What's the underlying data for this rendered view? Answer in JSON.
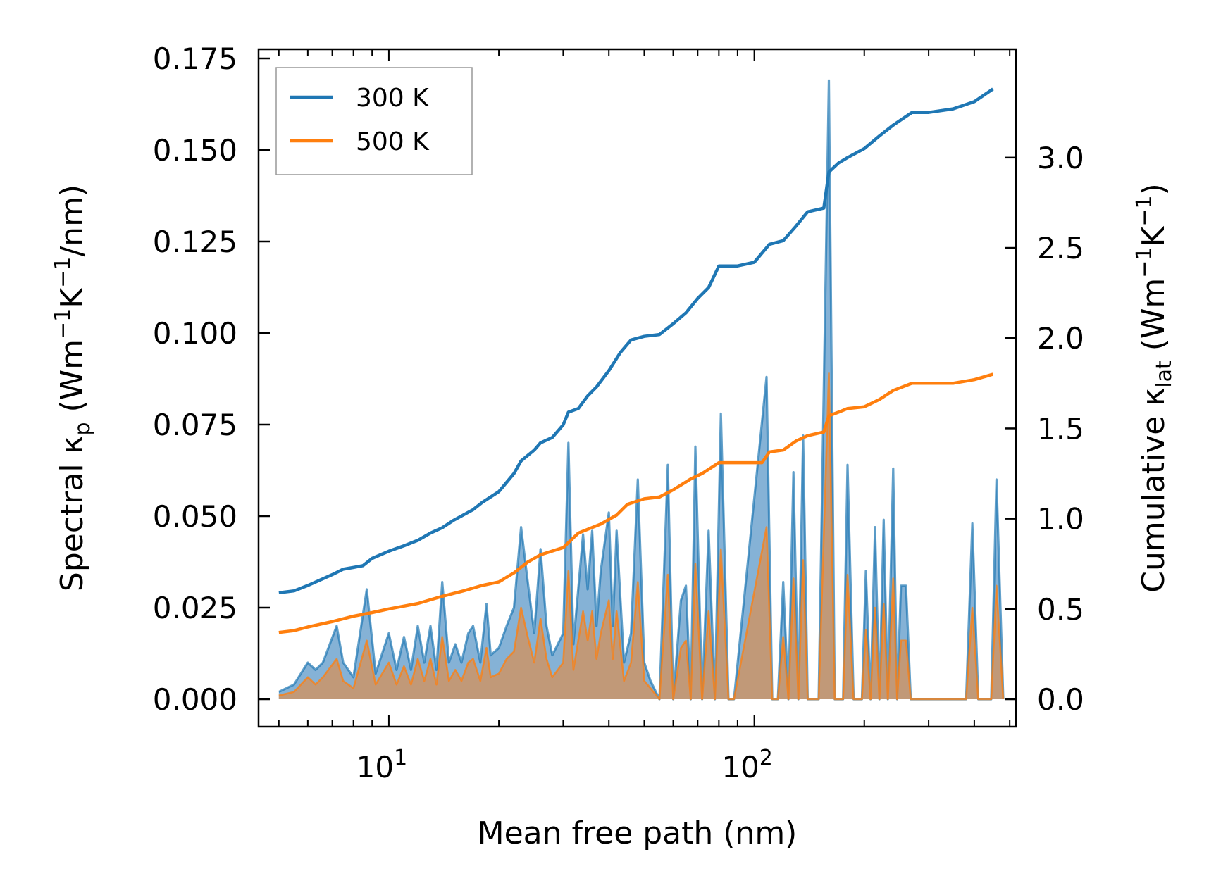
{
  "chart_data": {
    "type": "line",
    "xscale": "log",
    "xlabel": "Mean free path (nm)",
    "xlim": [
      4.4,
      520
    ],
    "x_ticks": [
      {
        "value": 10,
        "label": "10",
        "exp": "1"
      },
      {
        "value": 100,
        "label": "10",
        "exp": "2"
      }
    ],
    "ylabel_left": {
      "pre": "Spectral κ",
      "sub": "p",
      "mid": " (Wm",
      "sup1": "−1",
      "mid2": "K",
      "sup2": "−1",
      "post": "/nm)"
    },
    "ylabel_right": {
      "pre": "Cumulative κ",
      "sub": "lat",
      "mid": " (Wm",
      "sup1": "−1",
      "mid2": "K",
      "sup2": "−1",
      "post": ")"
    },
    "ylim_left": [
      -0.0075,
      0.1775
    ],
    "ylim_right": [
      -0.152,
      3.6
    ],
    "left_ticks": [
      "0.000",
      "0.025",
      "0.050",
      "0.075",
      "0.100",
      "0.125",
      "0.150",
      "0.175"
    ],
    "left_tick_values": [
      0,
      0.025,
      0.05,
      0.075,
      0.1,
      0.125,
      0.15,
      0.175
    ],
    "right_ticks": [
      "0.0",
      "0.5",
      "1.0",
      "1.5",
      "2.0",
      "2.5",
      "3.0"
    ],
    "right_tick_values": [
      0,
      0.5,
      1.0,
      1.5,
      2.0,
      2.5,
      3.0
    ],
    "legend": {
      "position": "top-left",
      "entries": [
        "300 K",
        "500 K"
      ]
    },
    "colors": {
      "t300": "#1f77b4",
      "t500": "#ff7f0e",
      "t500_fill": "#c8966e",
      "t300_fill": "#5c98c8"
    },
    "series": [
      {
        "name": "300 K",
        "cumulative": [
          [
            5.0,
            0.59
          ],
          [
            5.5,
            0.6
          ],
          [
            6.0,
            0.63
          ],
          [
            7.0,
            0.69
          ],
          [
            7.5,
            0.72
          ],
          [
            8.0,
            0.73
          ],
          [
            8.5,
            0.74
          ],
          [
            9.0,
            0.78
          ],
          [
            10.0,
            0.82
          ],
          [
            11.0,
            0.85
          ],
          [
            12.0,
            0.88
          ],
          [
            13.0,
            0.92
          ],
          [
            14.0,
            0.95
          ],
          [
            15.0,
            0.99
          ],
          [
            17.0,
            1.05
          ],
          [
            18.0,
            1.09
          ],
          [
            20.0,
            1.15
          ],
          [
            22.0,
            1.25
          ],
          [
            23.0,
            1.32
          ],
          [
            25.0,
            1.38
          ],
          [
            26.0,
            1.42
          ],
          [
            28.0,
            1.45
          ],
          [
            30.0,
            1.52
          ],
          [
            31.0,
            1.59
          ],
          [
            33.0,
            1.61
          ],
          [
            35.0,
            1.68
          ],
          [
            37.0,
            1.73
          ],
          [
            40.0,
            1.82
          ],
          [
            43.0,
            1.92
          ],
          [
            46.0,
            1.99
          ],
          [
            50.0,
            2.01
          ],
          [
            55.0,
            2.02
          ],
          [
            60.0,
            2.08
          ],
          [
            65.0,
            2.14
          ],
          [
            70.0,
            2.22
          ],
          [
            75.0,
            2.28
          ],
          [
            80.0,
            2.4
          ],
          [
            90.0,
            2.4
          ],
          [
            100.0,
            2.42
          ],
          [
            110.0,
            2.52
          ],
          [
            120.0,
            2.54
          ],
          [
            130.0,
            2.62
          ],
          [
            140.0,
            2.7
          ],
          [
            155.0,
            2.72
          ],
          [
            160.0,
            2.92
          ],
          [
            170.0,
            2.97
          ],
          [
            180.0,
            3.0
          ],
          [
            200.0,
            3.05
          ],
          [
            220.0,
            3.12
          ],
          [
            240.0,
            3.18
          ],
          [
            270.0,
            3.25
          ],
          [
            300.0,
            3.25
          ],
          [
            350.0,
            3.27
          ],
          [
            400.0,
            3.31
          ],
          [
            450.0,
            3.38
          ]
        ],
        "spectral": [
          [
            5.0,
            0.002
          ],
          [
            5.5,
            0.004
          ],
          [
            6.0,
            0.01
          ],
          [
            6.3,
            0.008
          ],
          [
            6.6,
            0.01
          ],
          [
            7.2,
            0.02
          ],
          [
            7.5,
            0.01
          ],
          [
            8.0,
            0.006
          ],
          [
            8.7,
            0.03
          ],
          [
            9.2,
            0.007
          ],
          [
            10.0,
            0.018
          ],
          [
            10.5,
            0.008
          ],
          [
            11.0,
            0.017
          ],
          [
            11.5,
            0.008
          ],
          [
            12.0,
            0.02
          ],
          [
            12.5,
            0.01
          ],
          [
            13.0,
            0.02
          ],
          [
            13.5,
            0.008
          ],
          [
            14.0,
            0.032
          ],
          [
            14.6,
            0.01
          ],
          [
            15.2,
            0.015
          ],
          [
            15.8,
            0.01
          ],
          [
            16.5,
            0.018
          ],
          [
            17.0,
            0.02
          ],
          [
            17.8,
            0.01
          ],
          [
            18.5,
            0.026
          ],
          [
            19.0,
            0.012
          ],
          [
            20.0,
            0.014
          ],
          [
            21.0,
            0.02
          ],
          [
            22.0,
            0.025
          ],
          [
            23.0,
            0.047
          ],
          [
            24.0,
            0.032
          ],
          [
            25.0,
            0.018
          ],
          [
            26.0,
            0.041
          ],
          [
            27.0,
            0.02
          ],
          [
            28.0,
            0.012
          ],
          [
            29.0,
            0.015
          ],
          [
            30.0,
            0.018
          ],
          [
            31.0,
            0.07
          ],
          [
            32.0,
            0.015
          ],
          [
            34.0,
            0.045
          ],
          [
            35.0,
            0.03
          ],
          [
            36.0,
            0.046
          ],
          [
            37.0,
            0.02
          ],
          [
            38.0,
            0.035
          ],
          [
            40.0,
            0.051
          ],
          [
            41.0,
            0.02
          ],
          [
            42.0,
            0.046
          ],
          [
            44.0,
            0.01
          ],
          [
            46.0,
            0.018
          ],
          [
            48.0,
            0.06
          ],
          [
            50.0,
            0.01
          ],
          [
            52.0,
            0.005
          ],
          [
            55.0,
            0.0
          ],
          [
            58.0,
            0.064
          ],
          [
            60.0,
            0.0
          ],
          [
            63.0,
            0.027
          ],
          [
            65.0,
            0.031
          ],
          [
            67.0,
            0.0
          ],
          [
            69.0,
            0.069
          ],
          [
            72.0,
            0.0
          ],
          [
            75.0,
            0.046
          ],
          [
            78.0,
            0.0
          ],
          [
            81.0,
            0.078
          ],
          [
            85.0,
            0.0
          ],
          [
            88.0,
            0.0
          ],
          [
            108.0,
            0.088
          ],
          [
            112.0,
            0.0
          ],
          [
            116.0,
            0.0
          ],
          [
            120.0,
            0.032
          ],
          [
            124.0,
            0.0
          ],
          [
            128.0,
            0.062
          ],
          [
            132.0,
            0.0
          ],
          [
            136.0,
            0.072
          ],
          [
            140.0,
            0.0
          ],
          [
            150.0,
            0.0
          ],
          [
            160.0,
            0.169
          ],
          [
            166.0,
            0.0
          ],
          [
            175.0,
            0.0
          ],
          [
            180.0,
            0.064
          ],
          [
            187.0,
            0.0
          ],
          [
            197.0,
            0.0
          ],
          [
            202.0,
            0.035
          ],
          [
            208.0,
            0.0
          ],
          [
            214.0,
            0.047
          ],
          [
            220.0,
            0.0
          ],
          [
            226.0,
            0.049
          ],
          [
            232.0,
            0.0
          ],
          [
            240.0,
            0.063
          ],
          [
            246.0,
            0.0
          ],
          [
            252.0,
            0.031
          ],
          [
            260.0,
            0.031
          ],
          [
            268.0,
            0.0
          ],
          [
            380.0,
            0.0
          ],
          [
            395.0,
            0.048
          ],
          [
            410.0,
            0.0
          ],
          [
            445.0,
            0.0
          ],
          [
            460.0,
            0.06
          ],
          [
            480.0,
            0.0
          ]
        ]
      },
      {
        "name": "500 K",
        "cumulative": [
          [
            5.0,
            0.37
          ],
          [
            5.5,
            0.38
          ],
          [
            6.0,
            0.4
          ],
          [
            7.0,
            0.43
          ],
          [
            8.0,
            0.46
          ],
          [
            9.0,
            0.48
          ],
          [
            10.0,
            0.5
          ],
          [
            12.0,
            0.53
          ],
          [
            14.0,
            0.57
          ],
          [
            16.0,
            0.6
          ],
          [
            18.0,
            0.63
          ],
          [
            20.0,
            0.65
          ],
          [
            22.0,
            0.7
          ],
          [
            24.0,
            0.76
          ],
          [
            26.0,
            0.8
          ],
          [
            30.0,
            0.84
          ],
          [
            33.0,
            0.92
          ],
          [
            38.0,
            0.97
          ],
          [
            42.0,
            1.02
          ],
          [
            45.0,
            1.08
          ],
          [
            50.0,
            1.11
          ],
          [
            55.0,
            1.12
          ],
          [
            60.0,
            1.16
          ],
          [
            67.0,
            1.22
          ],
          [
            72.0,
            1.25
          ],
          [
            80.0,
            1.31
          ],
          [
            90.0,
            1.31
          ],
          [
            105.0,
            1.31
          ],
          [
            110.0,
            1.37
          ],
          [
            120.0,
            1.38
          ],
          [
            130.0,
            1.43
          ],
          [
            140.0,
            1.46
          ],
          [
            155.0,
            1.48
          ],
          [
            160.0,
            1.57
          ],
          [
            170.0,
            1.59
          ],
          [
            180.0,
            1.61
          ],
          [
            200.0,
            1.62
          ],
          [
            220.0,
            1.66
          ],
          [
            240.0,
            1.71
          ],
          [
            270.0,
            1.75
          ],
          [
            300.0,
            1.75
          ],
          [
            350.0,
            1.75
          ],
          [
            400.0,
            1.77
          ],
          [
            450.0,
            1.8
          ]
        ],
        "spectral": [
          [
            5.0,
            0.001
          ],
          [
            5.5,
            0.002
          ],
          [
            6.0,
            0.006
          ],
          [
            6.3,
            0.004
          ],
          [
            6.6,
            0.006
          ],
          [
            7.2,
            0.011
          ],
          [
            7.5,
            0.005
          ],
          [
            8.0,
            0.003
          ],
          [
            8.7,
            0.016
          ],
          [
            9.2,
            0.004
          ],
          [
            10.0,
            0.01
          ],
          [
            10.5,
            0.004
          ],
          [
            11.0,
            0.009
          ],
          [
            11.5,
            0.004
          ],
          [
            12.0,
            0.011
          ],
          [
            12.5,
            0.005
          ],
          [
            13.0,
            0.011
          ],
          [
            13.5,
            0.004
          ],
          [
            14.0,
            0.017
          ],
          [
            14.6,
            0.005
          ],
          [
            15.2,
            0.008
          ],
          [
            15.8,
            0.005
          ],
          [
            16.5,
            0.01
          ],
          [
            17.0,
            0.011
          ],
          [
            17.8,
            0.005
          ],
          [
            18.5,
            0.014
          ],
          [
            19.0,
            0.006
          ],
          [
            20.0,
            0.007
          ],
          [
            21.0,
            0.011
          ],
          [
            22.0,
            0.013
          ],
          [
            23.0,
            0.025
          ],
          [
            24.0,
            0.017
          ],
          [
            25.0,
            0.01
          ],
          [
            26.0,
            0.022
          ],
          [
            27.0,
            0.011
          ],
          [
            28.0,
            0.006
          ],
          [
            29.0,
            0.008
          ],
          [
            30.0,
            0.01
          ],
          [
            31.0,
            0.035
          ],
          [
            32.0,
            0.008
          ],
          [
            34.0,
            0.024
          ],
          [
            35.0,
            0.016
          ],
          [
            36.0,
            0.024
          ],
          [
            37.0,
            0.011
          ],
          [
            38.0,
            0.018
          ],
          [
            40.0,
            0.027
          ],
          [
            41.0,
            0.011
          ],
          [
            42.0,
            0.024
          ],
          [
            44.0,
            0.005
          ],
          [
            46.0,
            0.01
          ],
          [
            48.0,
            0.032
          ],
          [
            50.0,
            0.005
          ],
          [
            52.0,
            0.003
          ],
          [
            55.0,
            0.0
          ],
          [
            58.0,
            0.034
          ],
          [
            60.0,
            0.0
          ],
          [
            63.0,
            0.014
          ],
          [
            65.0,
            0.016
          ],
          [
            67.0,
            0.0
          ],
          [
            69.0,
            0.037
          ],
          [
            72.0,
            0.0
          ],
          [
            75.0,
            0.024
          ],
          [
            78.0,
            0.0
          ],
          [
            81.0,
            0.041
          ],
          [
            85.0,
            0.0
          ],
          [
            88.0,
            0.0
          ],
          [
            108.0,
            0.047
          ],
          [
            112.0,
            0.0
          ],
          [
            116.0,
            0.0
          ],
          [
            120.0,
            0.017
          ],
          [
            124.0,
            0.0
          ],
          [
            128.0,
            0.033
          ],
          [
            132.0,
            0.0
          ],
          [
            136.0,
            0.038
          ],
          [
            140.0,
            0.0
          ],
          [
            150.0,
            0.0
          ],
          [
            160.0,
            0.089
          ],
          [
            166.0,
            0.0
          ],
          [
            175.0,
            0.0
          ],
          [
            180.0,
            0.034
          ],
          [
            187.0,
            0.0
          ],
          [
            197.0,
            0.0
          ],
          [
            202.0,
            0.019
          ],
          [
            208.0,
            0.0
          ],
          [
            214.0,
            0.025
          ],
          [
            220.0,
            0.0
          ],
          [
            226.0,
            0.026
          ],
          [
            232.0,
            0.0
          ],
          [
            240.0,
            0.033
          ],
          [
            246.0,
            0.0
          ],
          [
            252.0,
            0.016
          ],
          [
            260.0,
            0.016
          ],
          [
            268.0,
            0.0
          ],
          [
            380.0,
            0.0
          ],
          [
            395.0,
            0.025
          ],
          [
            410.0,
            0.0
          ],
          [
            445.0,
            0.0
          ],
          [
            460.0,
            0.031
          ],
          [
            480.0,
            0.0
          ]
        ]
      }
    ]
  }
}
